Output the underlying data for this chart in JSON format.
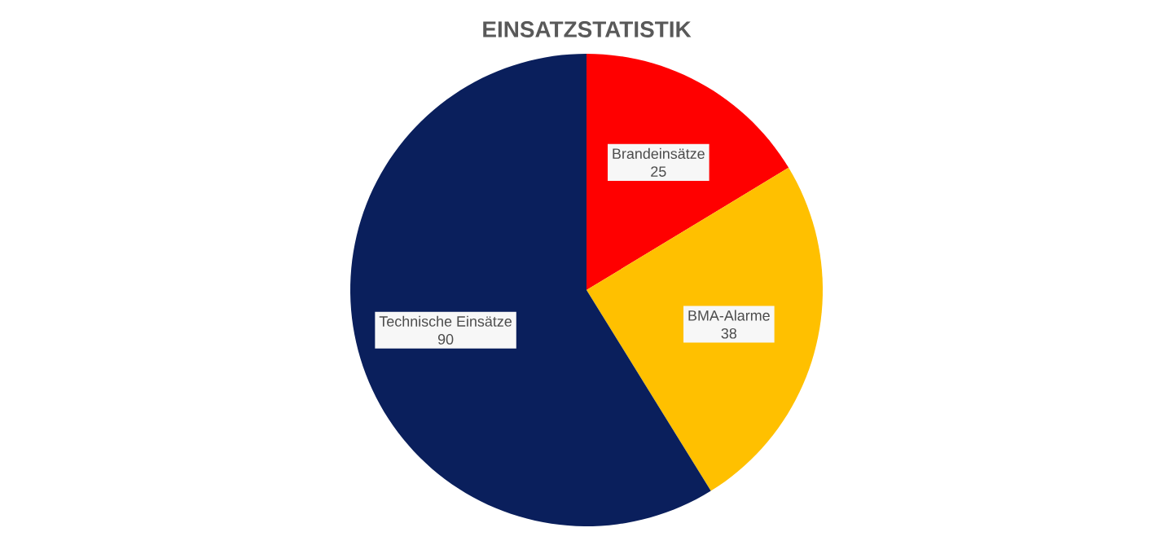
{
  "chart_data": {
    "type": "pie",
    "title": "EINSATZSTATISTIK",
    "categories": [
      "Brandeinsätze",
      "BMA-Alarme",
      "Technische Einsätze"
    ],
    "values": [
      25,
      38,
      90
    ],
    "colors": [
      "#ff0000",
      "#ffc000",
      "#0a1f5c"
    ],
    "data_labels": true
  }
}
